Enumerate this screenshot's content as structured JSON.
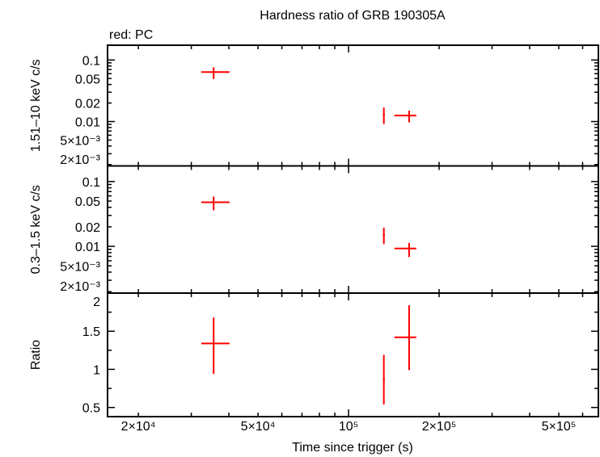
{
  "chart_data": {
    "type": "scatter",
    "title": "Hardness ratio of GRB 190305A",
    "subtitle": "red: PC",
    "xlabel": "Time since trigger (s)",
    "x_scale": "log",
    "xlim": [
      15800,
      677000
    ],
    "x_ticklabels": [
      {
        "value": 20000,
        "label": "2×10⁴"
      },
      {
        "value": 50000,
        "label": "5×10⁴"
      },
      {
        "value": 100000,
        "label": "10⁵"
      },
      {
        "value": 200000,
        "label": "2×10⁵"
      },
      {
        "value": 500000,
        "label": "5×10⁵"
      }
    ],
    "grid": false,
    "series_color": "#ff0000",
    "panels": [
      {
        "ylabel": "1.51–10 keV c/s",
        "y_scale": "log",
        "ylim": [
          0.0019,
          0.174
        ],
        "y_ticklabels": [
          {
            "value": 0.1,
            "label": "0.1"
          },
          {
            "value": 0.05,
            "label": "0.05"
          },
          {
            "value": 0.02,
            "label": "0.02"
          },
          {
            "value": 0.01,
            "label": "0.01"
          },
          {
            "value": 0.005,
            "label": "5×10⁻³"
          },
          {
            "value": 0.002,
            "label": "2×10⁻³"
          }
        ],
        "points": [
          {
            "x": 35600,
            "x_lo": 32400,
            "x_hi": 40200,
            "y": 0.0637,
            "y_lo": 0.049,
            "y_hi": 0.076
          },
          {
            "x": 131000,
            "x_lo": 130000,
            "x_hi": 132000,
            "y": 0.0129,
            "y_lo": 0.0091,
            "y_hi": 0.0169
          },
          {
            "x": 159000,
            "x_lo": 142000,
            "x_hi": 168000,
            "y": 0.0125,
            "y_lo": 0.0097,
            "y_hi": 0.015
          }
        ]
      },
      {
        "ylabel": "0.3–1.5 keV c/s",
        "y_scale": "log",
        "ylim": [
          0.0019,
          0.174
        ],
        "y_ticklabels": [
          {
            "value": 0.1,
            "label": "0.1"
          },
          {
            "value": 0.05,
            "label": "0.05"
          },
          {
            "value": 0.02,
            "label": "0.02"
          },
          {
            "value": 0.01,
            "label": "0.01"
          },
          {
            "value": 0.005,
            "label": "5×10⁻³"
          },
          {
            "value": 0.002,
            "label": "2×10⁻³"
          }
        ],
        "points": [
          {
            "x": 35600,
            "x_lo": 32400,
            "x_hi": 40200,
            "y": 0.0478,
            "y_lo": 0.036,
            "y_hi": 0.0586
          },
          {
            "x": 131000,
            "x_lo": 130000,
            "x_hi": 132000,
            "y": 0.015,
            "y_lo": 0.0108,
            "y_hi": 0.0194
          },
          {
            "x": 159000,
            "x_lo": 142000,
            "x_hi": 168000,
            "y": 0.00926,
            "y_lo": 0.00684,
            "y_hi": 0.0113
          }
        ]
      },
      {
        "ylabel": "Ratio",
        "y_scale": "linear",
        "ylim": [
          0.38,
          2.0
        ],
        "y_ticklabels": [
          {
            "value": 2,
            "label": "2"
          },
          {
            "value": 1.5,
            "label": "1.5"
          },
          {
            "value": 1,
            "label": "1"
          },
          {
            "value": 0.5,
            "label": "0.5"
          }
        ],
        "points": [
          {
            "x": 35600,
            "x_lo": 32400,
            "x_hi": 40200,
            "y": 1.34,
            "y_lo": 0.94,
            "y_hi": 1.68
          },
          {
            "x": 131000,
            "x_lo": 130000,
            "x_hi": 132000,
            "y": 0.87,
            "y_lo": 0.54,
            "y_hi": 1.19
          },
          {
            "x": 159000,
            "x_lo": 142000,
            "x_hi": 168000,
            "y": 1.42,
            "y_lo": 0.99,
            "y_hi": 1.84
          }
        ]
      }
    ]
  }
}
